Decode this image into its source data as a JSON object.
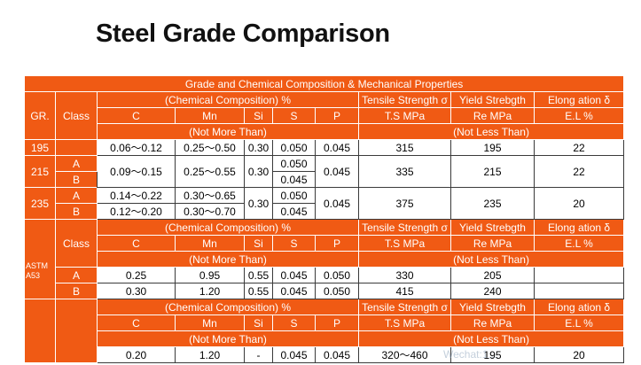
{
  "title": "Steel Grade Comparison",
  "header": "Grade and Chemical Composition & Mechanical Properties",
  "labels": {
    "gr": "GR.",
    "class": "Class",
    "chem": "(Chemical Composition)  %",
    "tensile": "Tensile Strength σ",
    "yield": "Yield Strebgth",
    "elong": "Elong ation δ",
    "c": "C",
    "mn": "Mn",
    "si": "Si",
    "s": "S",
    "p": "P",
    "ts": "T.S MPa",
    "re": "Re MPa",
    "el": "E.L %",
    "nmt": "(Not More Than)",
    "nlt": "(Not Less Than)"
  },
  "section1": {
    "g195": {
      "grade": "195",
      "c": "0.06～0.12",
      "mn": "0.25～0.50",
      "si": "0.30",
      "s": "0.050",
      "p": "0.045",
      "ts": "315",
      "re": "195",
      "el": "22"
    },
    "g215": {
      "grade": "215",
      "classA": "A",
      "classB": "B",
      "c": "0.09～0.15",
      "mn": "0.25～0.55",
      "si": "0.30",
      "sA": "0.050",
      "sB": "0.045",
      "p": "0.045",
      "ts": "335",
      "re": "215",
      "el": "22"
    },
    "g235": {
      "grade": "235",
      "classA": "A",
      "classB": "B",
      "cA": "0.14～0.22",
      "cB": "0.12～0.20",
      "mnA": "0.30～0.65",
      "mnB": "0.30～0.70",
      "si": "0.30",
      "sA": "0.050",
      "sB": "0.045",
      "p": "0.045",
      "ts": "375",
      "re": "235",
      "el": "20"
    }
  },
  "section2": {
    "grade": "ASTM A53",
    "rowA": {
      "class": "A",
      "c": "0.25",
      "mn": "0.95",
      "si": "0.55",
      "s": "0.045",
      "p": "0.050",
      "ts": "330",
      "re": "205",
      "el": ""
    },
    "rowB": {
      "class": "B",
      "c": "0.30",
      "mn": "1.20",
      "si": "0.55",
      "s": "0.045",
      "p": "0.050",
      "ts": "415",
      "re": "240",
      "el": ""
    }
  },
  "section3": {
    "row": {
      "c": "0.20",
      "mn": "1.20",
      "si": "-",
      "s": "0.045",
      "p": "0.045",
      "ts": "320～460",
      "re": "195",
      "el": "20"
    }
  },
  "watermark": "Wechat:1..."
}
